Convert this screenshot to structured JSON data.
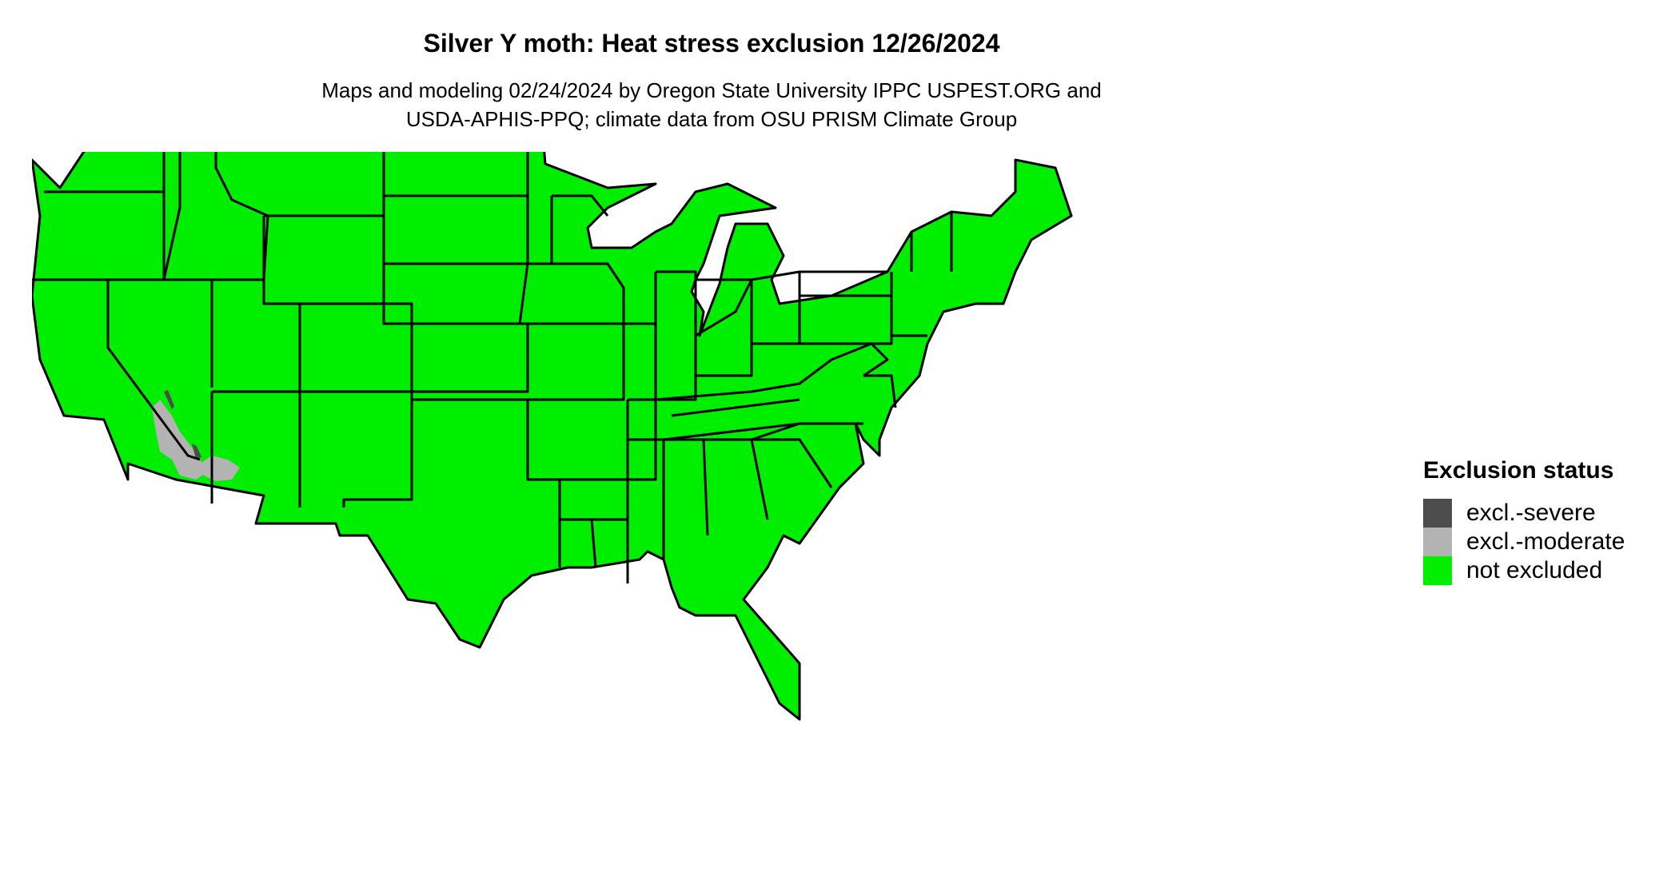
{
  "title": "Silver Y moth: Heat stress exclusion 12/26/2024",
  "subtitle_lines": [
    "Maps and modeling 02/24/2024 by Oregon State University IPPC USPEST.ORG and",
    "USDA-APHIS-PPQ; climate data from OSU PRISM Climate Group"
  ],
  "legend": {
    "title": "Exclusion status",
    "items": [
      {
        "label": "excl.-severe",
        "color": "#4d4d4d"
      },
      {
        "label": "excl.-moderate",
        "color": "#b3b3b3"
      },
      {
        "label": "not excluded",
        "color": "#00ee00"
      }
    ]
  },
  "map": {
    "region": "contiguous-united-states",
    "default_status": "not excluded",
    "excluded_areas": [
      {
        "area": "southeastern California desert",
        "status": "excl.-moderate"
      },
      {
        "area": "southwestern Arizona",
        "status": "excl.-moderate"
      },
      {
        "area": "lower Colorado River valley",
        "status": "excl.-severe"
      }
    ],
    "colors": {
      "land": "#00ee00",
      "border": "#000000"
    }
  }
}
